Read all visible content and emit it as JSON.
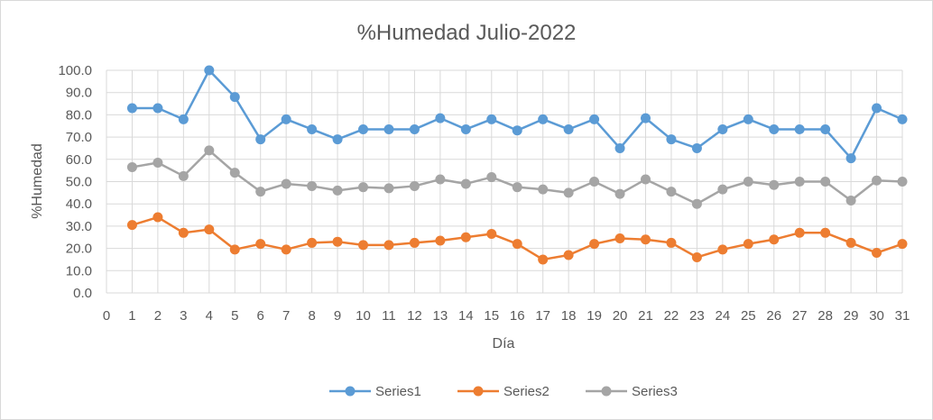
{
  "chart_data": {
    "type": "line",
    "title": "%Humedad Julio-2022",
    "xlabel": "Día",
    "ylabel": "%Humedad",
    "xlim": [
      0,
      31
    ],
    "ylim": [
      0,
      100
    ],
    "x_ticks": [
      0,
      1,
      2,
      3,
      4,
      5,
      6,
      7,
      8,
      9,
      10,
      11,
      12,
      13,
      14,
      15,
      16,
      17,
      18,
      19,
      20,
      21,
      22,
      23,
      24,
      25,
      26,
      27,
      28,
      29,
      30,
      31
    ],
    "y_ticks": [
      "0.0",
      "10.0",
      "20.0",
      "30.0",
      "40.0",
      "50.0",
      "60.0",
      "70.0",
      "80.0",
      "90.0",
      "100.0"
    ],
    "grid": true,
    "legend_position": "bottom",
    "x": [
      1,
      2,
      3,
      4,
      5,
      6,
      7,
      8,
      9,
      10,
      11,
      12,
      13,
      14,
      15,
      16,
      17,
      18,
      19,
      20,
      21,
      22,
      23,
      24,
      25,
      26,
      27,
      28,
      29,
      30,
      31
    ],
    "series": [
      {
        "name": "Series1",
        "color": "#5b9bd5",
        "values": [
          83,
          83,
          78,
          100,
          88,
          69,
          78,
          73.5,
          69,
          73.5,
          73.5,
          73.5,
          78.5,
          73.5,
          78,
          73,
          78,
          73.5,
          78,
          65,
          78.5,
          69,
          65,
          73.5,
          78,
          73.5,
          73.5,
          73.5,
          60.5,
          83,
          78
        ]
      },
      {
        "name": "Series2",
        "color": "#ed7d31",
        "values": [
          30.5,
          34,
          27,
          28.5,
          19.5,
          22,
          19.5,
          22.5,
          23,
          21.5,
          21.5,
          22.5,
          23.5,
          25,
          26.5,
          22,
          15,
          17,
          22,
          24.5,
          24,
          22.5,
          16,
          19.5,
          22,
          24,
          27,
          27,
          22.5,
          18,
          22
        ]
      },
      {
        "name": "Series3",
        "color": "#a5a5a5",
        "values": [
          56.5,
          58.5,
          52.5,
          64,
          54,
          45.5,
          49,
          48,
          46,
          47.5,
          47,
          48,
          51,
          49,
          52,
          47.5,
          46.5,
          45,
          50,
          44.5,
          51,
          45.5,
          40,
          46.5,
          50,
          48.5,
          50,
          50,
          41.5,
          50.5,
          50
        ]
      }
    ]
  }
}
